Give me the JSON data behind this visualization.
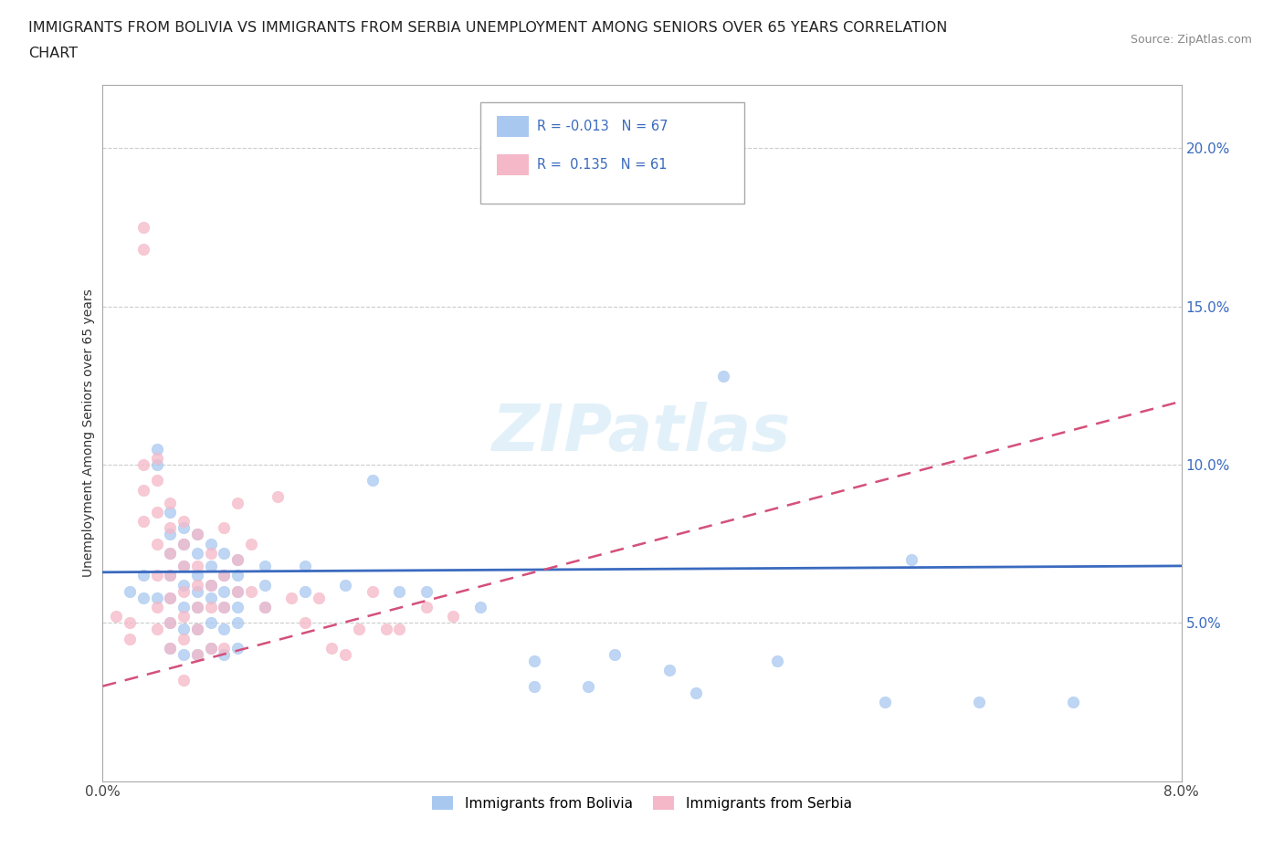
{
  "title_line1": "IMMIGRANTS FROM BOLIVIA VS IMMIGRANTS FROM SERBIA UNEMPLOYMENT AMONG SENIORS OVER 65 YEARS CORRELATION",
  "title_line2": "CHART",
  "source_text": "Source: ZipAtlas.com",
  "ylabel": "Unemployment Among Seniors over 65 years",
  "xlim": [
    0.0,
    0.08
  ],
  "ylim": [
    0.0,
    0.22
  ],
  "xticks": [
    0.0,
    0.01,
    0.02,
    0.03,
    0.04,
    0.05,
    0.06,
    0.07,
    0.08
  ],
  "xticklabels": [
    "0.0%",
    "",
    "",
    "",
    "",
    "",
    "",
    "",
    "8.0%"
  ],
  "yticks": [
    0.0,
    0.05,
    0.1,
    0.15,
    0.2
  ],
  "yticklabels_left": [
    "",
    "",
    "",
    "",
    ""
  ],
  "yticklabels_right": [
    "",
    "5.0%",
    "10.0%",
    "15.0%",
    "20.0%"
  ],
  "grid_color": "#cccccc",
  "background_color": "#ffffff",
  "bolivia_color": "#a8c8f0",
  "serbia_color": "#f5b8c8",
  "bolivia_R": -0.013,
  "bolivia_N": 67,
  "serbia_R": 0.135,
  "serbia_N": 61,
  "bolivia_trend_color": "#3a6abf",
  "serbia_trend_color": "#d4507a",
  "legend_R_color": "#3a6abf",
  "watermark": "ZIPatlas",
  "bolivia_label": "Immigrants from Bolivia",
  "serbia_label": "Immigrants from Serbia",
  "bolivia_scatter": [
    [
      0.002,
      0.06
    ],
    [
      0.003,
      0.065
    ],
    [
      0.003,
      0.058
    ],
    [
      0.004,
      0.105
    ],
    [
      0.004,
      0.1
    ],
    [
      0.004,
      0.058
    ],
    [
      0.005,
      0.085
    ],
    [
      0.005,
      0.078
    ],
    [
      0.005,
      0.072
    ],
    [
      0.005,
      0.065
    ],
    [
      0.005,
      0.058
    ],
    [
      0.005,
      0.05
    ],
    [
      0.005,
      0.042
    ],
    [
      0.006,
      0.08
    ],
    [
      0.006,
      0.075
    ],
    [
      0.006,
      0.068
    ],
    [
      0.006,
      0.062
    ],
    [
      0.006,
      0.055
    ],
    [
      0.006,
      0.048
    ],
    [
      0.006,
      0.04
    ],
    [
      0.007,
      0.078
    ],
    [
      0.007,
      0.072
    ],
    [
      0.007,
      0.065
    ],
    [
      0.007,
      0.06
    ],
    [
      0.007,
      0.055
    ],
    [
      0.007,
      0.048
    ],
    [
      0.007,
      0.04
    ],
    [
      0.008,
      0.075
    ],
    [
      0.008,
      0.068
    ],
    [
      0.008,
      0.062
    ],
    [
      0.008,
      0.058
    ],
    [
      0.008,
      0.05
    ],
    [
      0.008,
      0.042
    ],
    [
      0.009,
      0.072
    ],
    [
      0.009,
      0.065
    ],
    [
      0.009,
      0.06
    ],
    [
      0.009,
      0.055
    ],
    [
      0.009,
      0.048
    ],
    [
      0.009,
      0.04
    ],
    [
      0.01,
      0.07
    ],
    [
      0.01,
      0.065
    ],
    [
      0.01,
      0.06
    ],
    [
      0.01,
      0.055
    ],
    [
      0.01,
      0.05
    ],
    [
      0.01,
      0.042
    ],
    [
      0.012,
      0.068
    ],
    [
      0.012,
      0.062
    ],
    [
      0.012,
      0.055
    ],
    [
      0.015,
      0.068
    ],
    [
      0.015,
      0.06
    ],
    [
      0.018,
      0.062
    ],
    [
      0.02,
      0.095
    ],
    [
      0.022,
      0.06
    ],
    [
      0.024,
      0.06
    ],
    [
      0.028,
      0.055
    ],
    [
      0.032,
      0.038
    ],
    [
      0.032,
      0.03
    ],
    [
      0.036,
      0.03
    ],
    [
      0.038,
      0.04
    ],
    [
      0.042,
      0.035
    ],
    [
      0.044,
      0.028
    ],
    [
      0.046,
      0.128
    ],
    [
      0.05,
      0.038
    ],
    [
      0.058,
      0.025
    ],
    [
      0.06,
      0.07
    ],
    [
      0.065,
      0.025
    ],
    [
      0.072,
      0.025
    ]
  ],
  "serbia_scatter": [
    [
      0.001,
      0.052
    ],
    [
      0.002,
      0.05
    ],
    [
      0.002,
      0.045
    ],
    [
      0.003,
      0.175
    ],
    [
      0.003,
      0.168
    ],
    [
      0.003,
      0.1
    ],
    [
      0.003,
      0.092
    ],
    [
      0.003,
      0.082
    ],
    [
      0.004,
      0.102
    ],
    [
      0.004,
      0.095
    ],
    [
      0.004,
      0.085
    ],
    [
      0.004,
      0.075
    ],
    [
      0.004,
      0.065
    ],
    [
      0.004,
      0.055
    ],
    [
      0.004,
      0.048
    ],
    [
      0.005,
      0.088
    ],
    [
      0.005,
      0.08
    ],
    [
      0.005,
      0.072
    ],
    [
      0.005,
      0.065
    ],
    [
      0.005,
      0.058
    ],
    [
      0.005,
      0.05
    ],
    [
      0.005,
      0.042
    ],
    [
      0.006,
      0.082
    ],
    [
      0.006,
      0.075
    ],
    [
      0.006,
      0.068
    ],
    [
      0.006,
      0.06
    ],
    [
      0.006,
      0.052
    ],
    [
      0.006,
      0.045
    ],
    [
      0.006,
      0.032
    ],
    [
      0.007,
      0.078
    ],
    [
      0.007,
      0.068
    ],
    [
      0.007,
      0.062
    ],
    [
      0.007,
      0.055
    ],
    [
      0.007,
      0.048
    ],
    [
      0.007,
      0.04
    ],
    [
      0.008,
      0.072
    ],
    [
      0.008,
      0.062
    ],
    [
      0.008,
      0.055
    ],
    [
      0.008,
      0.042
    ],
    [
      0.009,
      0.08
    ],
    [
      0.009,
      0.065
    ],
    [
      0.009,
      0.055
    ],
    [
      0.009,
      0.042
    ],
    [
      0.01,
      0.088
    ],
    [
      0.01,
      0.07
    ],
    [
      0.01,
      0.06
    ],
    [
      0.011,
      0.075
    ],
    [
      0.011,
      0.06
    ],
    [
      0.012,
      0.055
    ],
    [
      0.013,
      0.09
    ],
    [
      0.014,
      0.058
    ],
    [
      0.015,
      0.05
    ],
    [
      0.016,
      0.058
    ],
    [
      0.017,
      0.042
    ],
    [
      0.018,
      0.04
    ],
    [
      0.019,
      0.048
    ],
    [
      0.02,
      0.06
    ],
    [
      0.021,
      0.048
    ],
    [
      0.022,
      0.048
    ],
    [
      0.024,
      0.055
    ],
    [
      0.026,
      0.052
    ]
  ]
}
